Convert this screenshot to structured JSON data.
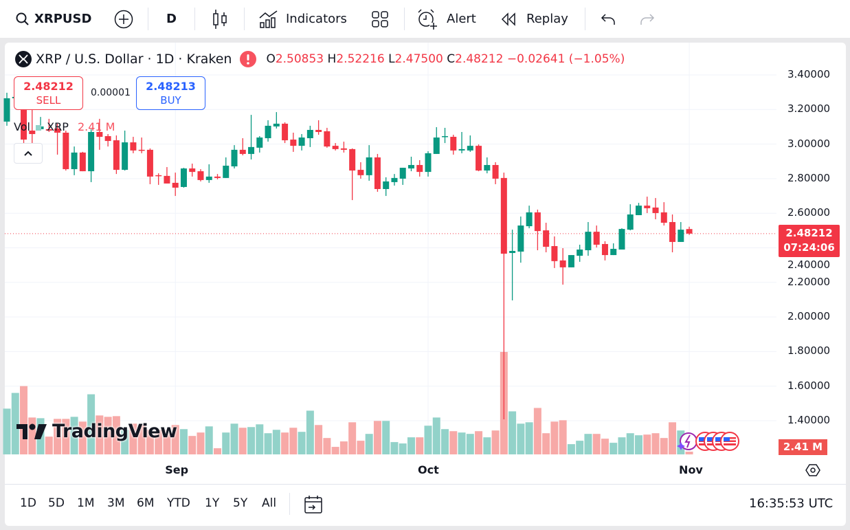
{
  "toolbar": {
    "symbol": "XRPUSD",
    "interval": "D",
    "indicators": "Indicators",
    "alert": "Alert",
    "replay": "Replay"
  },
  "legend": {
    "title": "XRP / U.S. Dollar · 1D · Kraken",
    "o_label": "O",
    "o": "2.50853",
    "h_label": "H",
    "h": "2.52216",
    "l_label": "L",
    "l": "2.47500",
    "c_label": "C",
    "c": "2.48212",
    "change": "−0.02641 (−1.05%)"
  },
  "trade": {
    "sell_price": "2.48212",
    "sell_label": "SELL",
    "spread": "0.00001",
    "buy_price": "2.48213",
    "buy_label": "BUY"
  },
  "volume_legend": {
    "label": "Vol",
    "symbol": "XRP",
    "value": "2.41 M"
  },
  "price_axis": [
    "3.40000",
    "3.20000",
    "3.00000",
    "2.80000",
    "2.60000",
    "2.40000",
    "2.20000",
    "2.00000",
    "1.80000",
    "1.60000",
    "1.40000"
  ],
  "current_price": {
    "price": "2.48212",
    "countdown": "07:24:06"
  },
  "volume_label": "2.41 M",
  "time_axis": [
    "Sep",
    "Oct",
    "Nov"
  ],
  "logo": "TradingView",
  "ranges": [
    "1D",
    "5D",
    "1M",
    "3M",
    "6M",
    "YTD",
    "1Y",
    "5Y",
    "All"
  ],
  "clock": "16:35:53 UTC",
  "colors": {
    "up": "#089981",
    "down": "#f23645",
    "up_vol": "#92d2c9",
    "down_vol": "#f7a9a7",
    "buy": "#2962ff"
  },
  "chart_data": {
    "type": "candlestick",
    "title": "XRP / U.S. Dollar · 1D · Kraken",
    "ylim": [
      1.3,
      3.45
    ],
    "x_ticks": [
      {
        "label": "Sep",
        "index": 20
      },
      {
        "label": "Oct",
        "index": 50
      },
      {
        "label": "Nov",
        "index": 81
      }
    ],
    "ohlc": [
      [
        3.13,
        3.297,
        3.106,
        3.265
      ],
      [
        3.265,
        3.277,
        3.257,
        3.273
      ],
      [
        3.197,
        3.217,
        2.986,
        3.026
      ],
      [
        3.078,
        3.197,
        3.006,
        3.058
      ],
      [
        3.086,
        3.157,
        3.078,
        3.102
      ],
      [
        3.086,
        3.146,
        3.07,
        3.078
      ],
      [
        3.09,
        3.118,
        2.939,
        3.066
      ],
      [
        3.066,
        3.078,
        2.847,
        2.855
      ],
      [
        2.855,
        2.986,
        2.82,
        2.951
      ],
      [
        2.951,
        2.955,
        2.843,
        2.843
      ],
      [
        2.843,
        3.086,
        2.78,
        3.07
      ],
      [
        3.07,
        3.146,
        2.967,
        3.042
      ],
      [
        3.046,
        3.058,
        2.986,
        3.018
      ],
      [
        3.022,
        3.05,
        2.827,
        2.851
      ],
      [
        2.851,
        3.078,
        2.847,
        3.01
      ],
      [
        3.01,
        3.042,
        2.947,
        2.963
      ],
      [
        2.967,
        3.038,
        2.947,
        2.963
      ],
      [
        2.967,
        2.975,
        2.768,
        2.812
      ],
      [
        2.82,
        2.831,
        2.764,
        2.816
      ],
      [
        2.816,
        2.867,
        2.772,
        2.772
      ],
      [
        2.776,
        2.835,
        2.7,
        2.748
      ],
      [
        2.752,
        2.863,
        2.748,
        2.859
      ],
      [
        2.859,
        2.887,
        2.812,
        2.839
      ],
      [
        2.843,
        2.855,
        2.784,
        2.792
      ],
      [
        2.792,
        2.883,
        2.776,
        2.812
      ],
      [
        2.812,
        2.827,
        2.796,
        2.804
      ],
      [
        2.804,
        2.923,
        2.804,
        2.875
      ],
      [
        2.871,
        2.994,
        2.859,
        2.967
      ],
      [
        2.967,
        3.034,
        2.935,
        2.943
      ],
      [
        2.943,
        3.169,
        2.911,
        2.983
      ],
      [
        2.979,
        3.046,
        2.951,
        3.038
      ],
      [
        3.034,
        3.138,
        3.014,
        3.106
      ],
      [
        3.102,
        3.185,
        3.09,
        3.118
      ],
      [
        3.118,
        3.126,
        3.006,
        3.022
      ],
      [
        3.026,
        3.066,
        2.955,
        2.99
      ],
      [
        2.99,
        3.058,
        2.963,
        3.038
      ],
      [
        3.034,
        3.106,
        2.983,
        3.082
      ],
      [
        3.082,
        3.138,
        3.054,
        3.07
      ],
      [
        3.074,
        3.094,
        2.979,
        2.986
      ],
      [
        2.99,
        3.006,
        2.963,
        2.971
      ],
      [
        2.975,
        3.014,
        2.951,
        2.967
      ],
      [
        2.971,
        2.975,
        2.676,
        2.847
      ],
      [
        2.851,
        2.895,
        2.8,
        2.82
      ],
      [
        2.82,
        2.994,
        2.788,
        2.923
      ],
      [
        2.923,
        2.943,
        2.724,
        2.74
      ],
      [
        2.74,
        2.808,
        2.7,
        2.784
      ],
      [
        2.78,
        2.827,
        2.76,
        2.804
      ],
      [
        2.8,
        2.863,
        2.764,
        2.863
      ],
      [
        2.859,
        2.927,
        2.843,
        2.879
      ],
      [
        2.879,
        2.907,
        2.812,
        2.839
      ],
      [
        2.839,
        2.959,
        2.812,
        2.947
      ],
      [
        2.943,
        3.098,
        2.943,
        3.038
      ],
      [
        3.042,
        3.094,
        3.006,
        3.046
      ],
      [
        3.042,
        3.054,
        2.939,
        2.963
      ],
      [
        2.963,
        3.07,
        2.947,
        2.971
      ],
      [
        2.963,
        3.05,
        2.955,
        2.99
      ],
      [
        2.99,
        2.998,
        2.843,
        2.847
      ],
      [
        2.847,
        2.923,
        2.831,
        2.879
      ],
      [
        2.879,
        2.895,
        2.768,
        2.8
      ],
      [
        2.804,
        2.835,
        1.408,
        2.366
      ],
      [
        2.37,
        2.505,
        2.096,
        2.382
      ],
      [
        2.378,
        2.581,
        2.314,
        2.529
      ],
      [
        2.525,
        2.644,
        2.513,
        2.605
      ],
      [
        2.605,
        2.621,
        2.386,
        2.497
      ],
      [
        2.501,
        2.545,
        2.374,
        2.406
      ],
      [
        2.41,
        2.466,
        2.283,
        2.323
      ],
      [
        2.327,
        2.398,
        2.187,
        2.287
      ],
      [
        2.287,
        2.358,
        2.287,
        2.358
      ],
      [
        2.354,
        2.418,
        2.319,
        2.39
      ],
      [
        2.386,
        2.549,
        2.354,
        2.493
      ],
      [
        2.493,
        2.529,
        2.402,
        2.418
      ],
      [
        2.422,
        2.438,
        2.327,
        2.358
      ],
      [
        2.358,
        2.426,
        2.358,
        2.394
      ],
      [
        2.39,
        2.513,
        2.39,
        2.509
      ],
      [
        2.505,
        2.652,
        2.501,
        2.593
      ],
      [
        2.589,
        2.66,
        2.589,
        2.644
      ],
      [
        2.644,
        2.696,
        2.601,
        2.629
      ],
      [
        2.633,
        2.688,
        2.565,
        2.601
      ],
      [
        2.605,
        2.664,
        2.529,
        2.545
      ],
      [
        2.549,
        2.593,
        2.374,
        2.434
      ],
      [
        2.434,
        2.549,
        2.434,
        2.505
      ],
      [
        2.50853,
        2.52216,
        2.475,
        2.48212
      ]
    ],
    "volume_millions": [
      40.2,
      54,
      60,
      32.4,
      31.8,
      15.6,
      31.2,
      31.2,
      33,
      28.8,
      52.8,
      34.2,
      33,
      33.6,
      21.6,
      27,
      25.8,
      21.6,
      21.6,
      21.6,
      25.8,
      22.2,
      16.2,
      19.2,
      24.6,
      5.4,
      19.2,
      27,
      23.4,
      24,
      26.4,
      18.6,
      21.6,
      19.2,
      23.4,
      19.8,
      38.4,
      25.8,
      14.4,
      6.6,
      11.4,
      28.2,
      12,
      18,
      29.4,
      29.4,
      10.8,
      9.6,
      15,
      15,
      25.2,
      32.4,
      22.2,
      20.4,
      19.2,
      18,
      20.4,
      15,
      21,
      90,
      37.8,
      27,
      28.2,
      40.8,
      18.6,
      28.8,
      30,
      9,
      12,
      18,
      18,
      13.8,
      10.2,
      15,
      18.6,
      16.8,
      17.4,
      18.6,
      14.4,
      28.2,
      21,
      2.41
    ]
  }
}
